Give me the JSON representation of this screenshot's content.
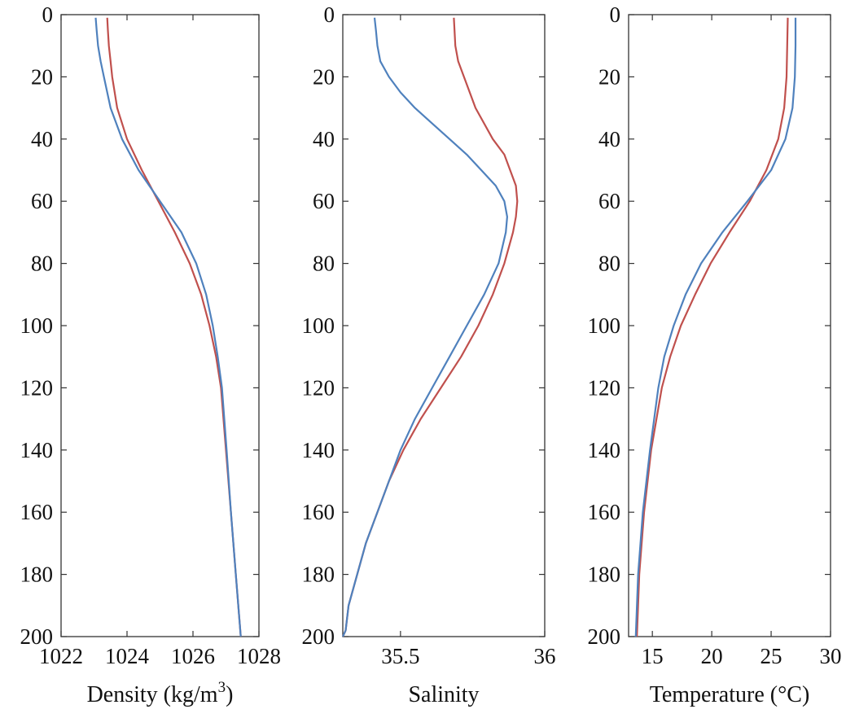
{
  "colors": {
    "red_series": "#c0504d",
    "blue_series": "#4f81bd",
    "axes": "#333333"
  },
  "chart_data": [
    {
      "type": "line",
      "title": "",
      "xlabel": "Density (kg/m",
      "xlabel_superscript": "3",
      "xlabel_suffix": ")",
      "ylabel": "",
      "y_reversed": true,
      "xlim": [
        1022,
        1028
      ],
      "ylim": [
        0,
        200
      ],
      "xticks": [
        1022,
        1024,
        1026,
        1028
      ],
      "yticks": [
        0,
        20,
        40,
        60,
        80,
        100,
        120,
        140,
        160,
        180,
        200
      ],
      "grid": false,
      "series": [
        {
          "color": "#c0504d",
          "y": [
            1,
            5,
            10,
            15,
            20,
            30,
            40,
            50,
            60,
            70,
            80,
            90,
            100,
            110,
            120,
            140,
            160,
            180,
            200
          ],
          "x": [
            1023.4,
            1023.42,
            1023.45,
            1023.5,
            1023.55,
            1023.7,
            1024.0,
            1024.45,
            1024.95,
            1025.45,
            1025.9,
            1026.25,
            1026.5,
            1026.7,
            1026.85,
            1027.0,
            1027.15,
            1027.3,
            1027.45
          ]
        },
        {
          "color": "#4f81bd",
          "y": [
            1,
            5,
            10,
            15,
            20,
            30,
            40,
            50,
            60,
            70,
            80,
            90,
            100,
            110,
            120,
            140,
            160,
            180,
            200
          ],
          "x": [
            1023.05,
            1023.08,
            1023.12,
            1023.2,
            1023.3,
            1023.5,
            1023.85,
            1024.35,
            1025.0,
            1025.65,
            1026.1,
            1026.4,
            1026.6,
            1026.75,
            1026.88,
            1027.02,
            1027.15,
            1027.3,
            1027.45
          ]
        }
      ]
    },
    {
      "type": "line",
      "title": "",
      "xlabel": "Salinity",
      "ylabel": "",
      "y_reversed": true,
      "xlim": [
        35.3,
        36.0
      ],
      "ylim": [
        0,
        200
      ],
      "xticks": [
        35.5,
        36
      ],
      "xtick_labels": [
        "35.5",
        "36"
      ],
      "yticks": [
        0,
        20,
        40,
        60,
        80,
        100,
        120,
        140,
        160,
        180,
        200
      ],
      "grid": false,
      "series": [
        {
          "color": "#c0504d",
          "y": [
            1,
            10,
            15,
            20,
            30,
            40,
            45,
            50,
            55,
            60,
            65,
            70,
            80,
            90,
            100,
            110,
            120,
            130,
            140,
            150,
            160,
            170,
            180,
            190,
            198,
            200
          ],
          "x": [
            35.685,
            35.69,
            35.7,
            35.72,
            35.76,
            35.82,
            35.86,
            35.88,
            35.9,
            35.905,
            35.9,
            35.89,
            35.86,
            35.82,
            35.77,
            35.71,
            35.64,
            35.57,
            35.51,
            35.46,
            35.42,
            35.38,
            35.35,
            35.32,
            35.31,
            35.3
          ]
        },
        {
          "color": "#4f81bd",
          "y": [
            1,
            5,
            10,
            15,
            20,
            25,
            30,
            35,
            40,
            45,
            50,
            55,
            60,
            65,
            70,
            80,
            90,
            100,
            110,
            120,
            130,
            140,
            150,
            160,
            170,
            180,
            190,
            198,
            200
          ],
          "x": [
            35.41,
            35.415,
            35.42,
            35.43,
            35.46,
            35.5,
            35.55,
            35.61,
            35.67,
            35.73,
            35.78,
            35.83,
            35.86,
            35.87,
            35.865,
            35.84,
            35.79,
            35.73,
            35.67,
            35.61,
            35.55,
            35.5,
            35.46,
            35.42,
            35.38,
            35.35,
            35.32,
            35.31,
            35.3
          ]
        }
      ]
    },
    {
      "type": "line",
      "title": "",
      "xlabel": "Temperature (°C)",
      "ylabel": "",
      "y_reversed": true,
      "xlim": [
        13,
        30
      ],
      "ylim": [
        0,
        200
      ],
      "xticks": [
        15,
        20,
        25,
        30
      ],
      "yticks": [
        0,
        20,
        40,
        60,
        80,
        100,
        120,
        140,
        160,
        180,
        200
      ],
      "grid": false,
      "series": [
        {
          "color": "#c0504d",
          "y": [
            1,
            10,
            20,
            30,
            40,
            50,
            60,
            70,
            80,
            90,
            100,
            110,
            120,
            140,
            160,
            180,
            200
          ],
          "x": [
            26.4,
            26.35,
            26.3,
            26.1,
            25.6,
            24.6,
            23.2,
            21.5,
            19.9,
            18.6,
            17.4,
            16.5,
            15.8,
            14.9,
            14.3,
            13.9,
            13.7
          ]
        },
        {
          "color": "#4f81bd",
          "y": [
            1,
            10,
            20,
            30,
            40,
            50,
            60,
            70,
            80,
            90,
            100,
            110,
            120,
            140,
            160,
            180,
            200
          ],
          "x": [
            27.05,
            27.05,
            27.0,
            26.8,
            26.2,
            25.0,
            23.0,
            20.9,
            19.1,
            17.8,
            16.8,
            16.0,
            15.5,
            14.8,
            14.2,
            13.8,
            13.6
          ]
        }
      ]
    }
  ]
}
